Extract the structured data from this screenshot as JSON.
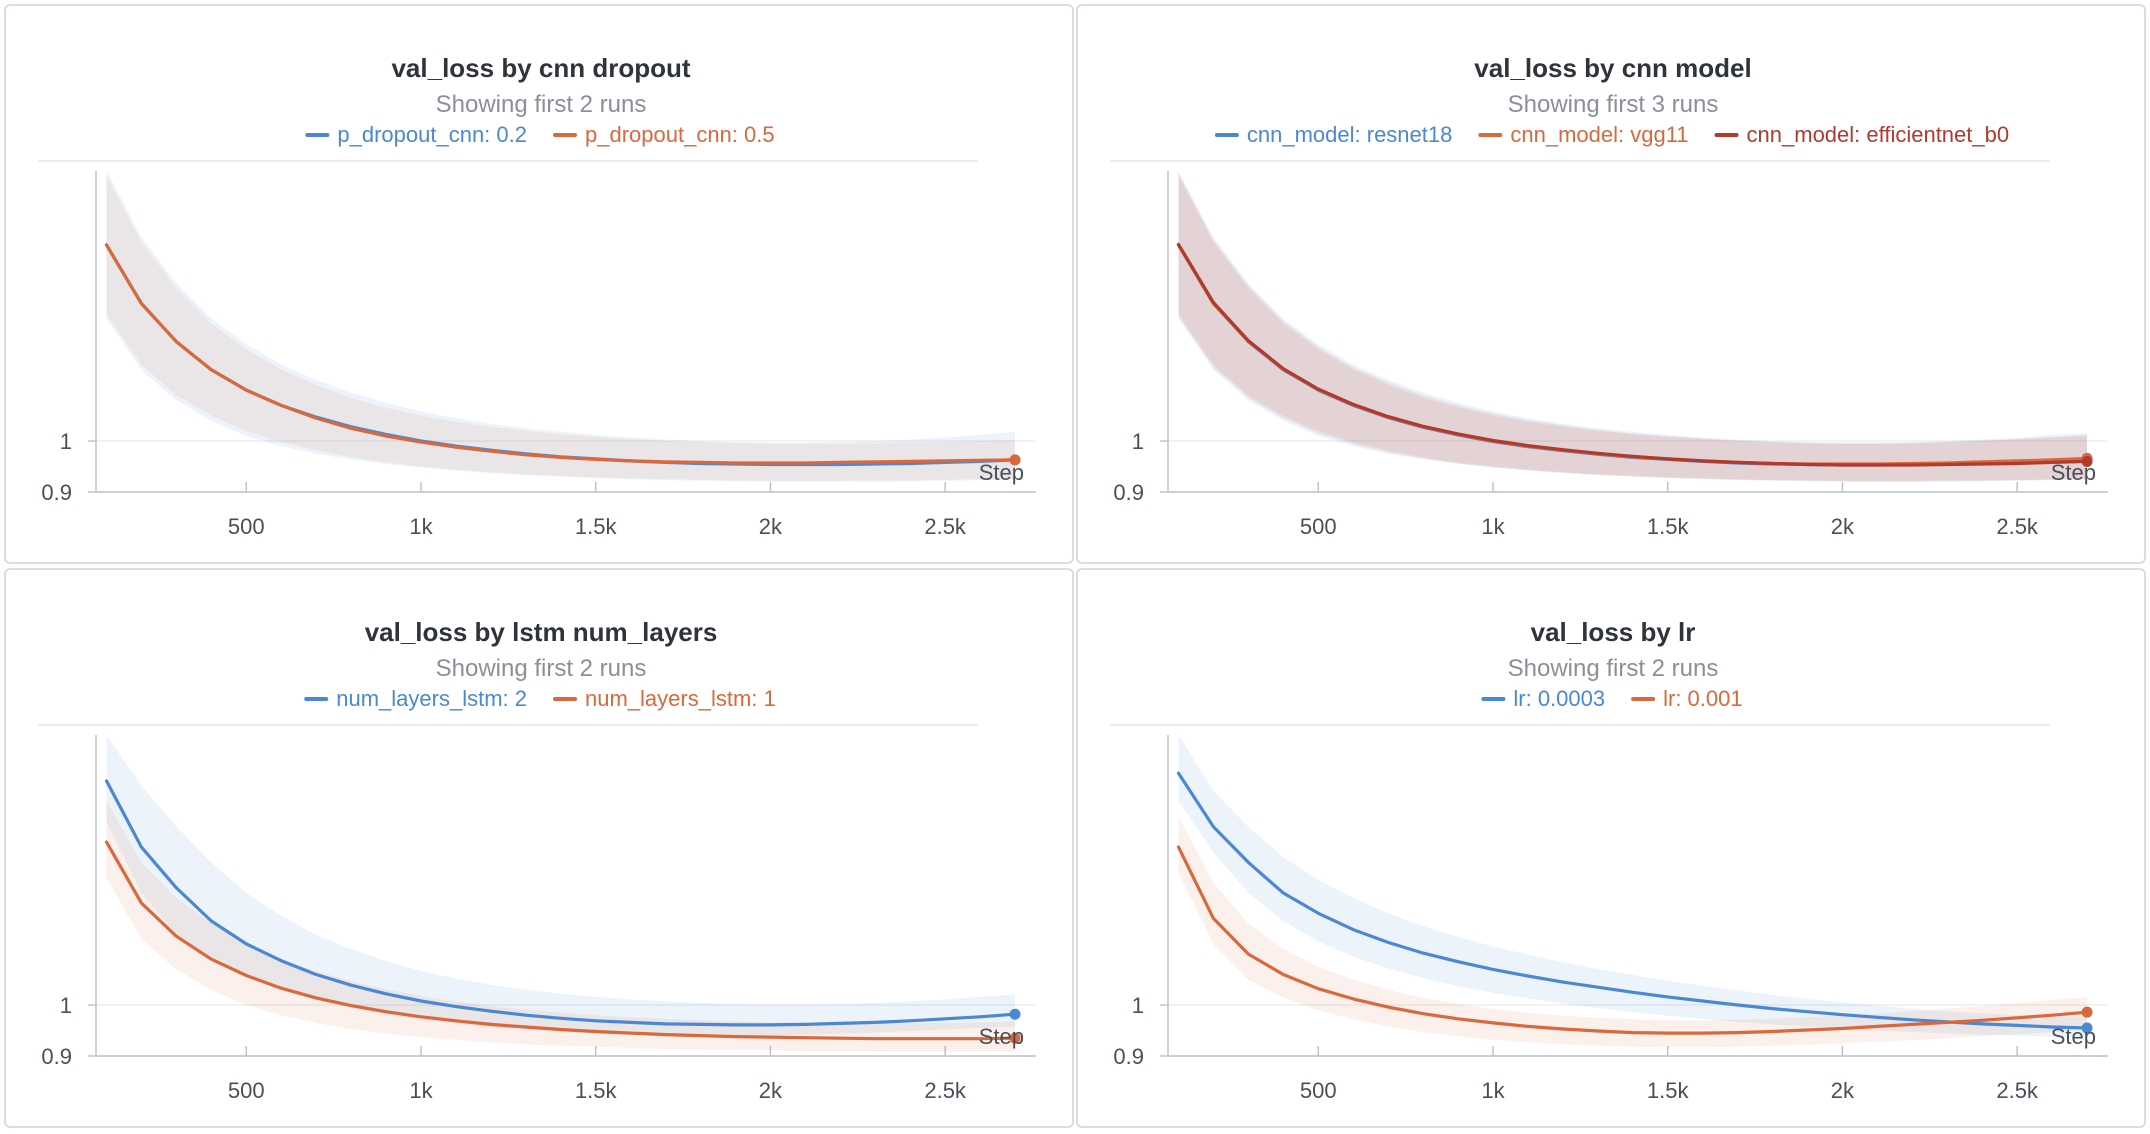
{
  "colors": {
    "blue": "#4a88d4",
    "orange": "#d9683a",
    "darkred": "#b03a2e"
  },
  "chart_data": [
    {
      "type": "line",
      "title": "val_loss by cnn dropout",
      "subtitle": "Showing first 2 runs",
      "xlabel": "Step",
      "x_ticks": [
        500,
        1000,
        1500,
        2000,
        2500
      ],
      "x_tick_labels": [
        "500",
        "1k",
        "1.5k",
        "2k",
        "2.5k"
      ],
      "y_ticks": [
        0.9,
        1
      ],
      "y_tick_labels": [
        "0.9",
        "1"
      ],
      "xlim": [
        70,
        2760
      ],
      "ylim": [
        0.9,
        1.53
      ],
      "x": [
        100,
        200,
        300,
        400,
        500,
        600,
        700,
        800,
        900,
        1000,
        1100,
        1200,
        1300,
        1400,
        1500,
        1600,
        1700,
        1800,
        1900,
        2000,
        2100,
        2200,
        2300,
        2400,
        2500,
        2600,
        2700
      ],
      "series": [
        {
          "name": "p_dropout_cnn: 0.2",
          "color_key": "blue",
          "values": [
            1.385,
            1.27,
            1.195,
            1.14,
            1.1,
            1.07,
            1.047,
            1.028,
            1.013,
            1.0,
            0.99,
            0.982,
            0.975,
            0.969,
            0.965,
            0.961,
            0.958,
            0.956,
            0.955,
            0.954,
            0.954,
            0.954,
            0.955,
            0.956,
            0.958,
            0.96,
            0.963
          ],
          "band_upper": [
            1.53,
            1.4,
            1.31,
            1.24,
            1.19,
            1.15,
            1.12,
            1.095,
            1.075,
            1.058,
            1.045,
            1.034,
            1.025,
            1.018,
            1.012,
            1.007,
            1.003,
            1.0,
            0.998,
            0.997,
            0.997,
            0.998,
            1.0,
            1.003,
            1.007,
            1.012,
            1.018
          ],
          "band_lower": [
            1.24,
            1.14,
            1.08,
            1.04,
            1.01,
            0.99,
            0.975,
            0.964,
            0.955,
            0.948,
            0.942,
            0.937,
            0.933,
            0.93,
            0.927,
            0.925,
            0.923,
            0.922,
            0.921,
            0.92,
            0.92,
            0.92,
            0.92,
            0.921,
            0.922,
            0.923,
            0.925
          ]
        },
        {
          "name": "p_dropout_cnn: 0.5",
          "color_key": "orange",
          "values": [
            1.385,
            1.27,
            1.195,
            1.14,
            1.1,
            1.07,
            1.045,
            1.025,
            1.01,
            0.998,
            0.988,
            0.98,
            0.973,
            0.968,
            0.964,
            0.961,
            0.959,
            0.958,
            0.957,
            0.957,
            0.957,
            0.958,
            0.959,
            0.96,
            0.961,
            0.962,
            0.963
          ],
          "band_upper": [
            1.52,
            1.39,
            1.3,
            1.23,
            1.18,
            1.14,
            1.11,
            1.085,
            1.065,
            1.05,
            1.038,
            1.028,
            1.02,
            1.013,
            1.008,
            1.004,
            1.0,
            0.998,
            0.996,
            0.995,
            0.995,
            0.995,
            0.996,
            0.997,
            0.998,
            1.0,
            1.002
          ],
          "band_lower": [
            1.25,
            1.15,
            1.09,
            1.05,
            1.02,
            0.998,
            0.982,
            0.968,
            0.958,
            0.95,
            0.944,
            0.939,
            0.935,
            0.932,
            0.929,
            0.927,
            0.925,
            0.924,
            0.923,
            0.922,
            0.922,
            0.922,
            0.923,
            0.923,
            0.924,
            0.925,
            0.926
          ]
        }
      ]
    },
    {
      "type": "line",
      "title": "val_loss by cnn model",
      "subtitle": "Showing first 3 runs",
      "xlabel": "Step",
      "x_ticks": [
        500,
        1000,
        1500,
        2000,
        2500
      ],
      "x_tick_labels": [
        "500",
        "1k",
        "1.5k",
        "2k",
        "2.5k"
      ],
      "y_ticks": [
        0.9,
        1
      ],
      "y_tick_labels": [
        "0.9",
        "1"
      ],
      "xlim": [
        70,
        2760
      ],
      "ylim": [
        0.9,
        1.53
      ],
      "x": [
        100,
        200,
        300,
        400,
        500,
        600,
        700,
        800,
        900,
        1000,
        1100,
        1200,
        1300,
        1400,
        1500,
        1600,
        1700,
        1800,
        1900,
        2000,
        2100,
        2200,
        2300,
        2400,
        2500,
        2600,
        2700
      ],
      "series": [
        {
          "name": "cnn_model: resnet18",
          "color_key": "blue",
          "values": [
            1.385,
            1.27,
            1.195,
            1.14,
            1.1,
            1.07,
            1.046,
            1.027,
            1.012,
            0.999,
            0.989,
            0.981,
            0.974,
            0.968,
            0.964,
            0.96,
            0.957,
            0.955,
            0.954,
            0.953,
            0.953,
            0.954,
            0.955,
            0.956,
            0.958,
            0.96,
            0.962
          ],
          "band_upper": [
            1.53,
            1.4,
            1.31,
            1.24,
            1.19,
            1.15,
            1.12,
            1.095,
            1.075,
            1.058,
            1.045,
            1.034,
            1.025,
            1.018,
            1.012,
            1.007,
            1.003,
            1.0,
            0.998,
            0.997,
            0.997,
            0.998,
            1.0,
            1.003,
            1.007,
            1.012,
            1.016
          ],
          "band_lower": [
            1.24,
            1.14,
            1.08,
            1.04,
            1.01,
            0.99,
            0.975,
            0.964,
            0.955,
            0.948,
            0.942,
            0.937,
            0.933,
            0.93,
            0.927,
            0.925,
            0.923,
            0.922,
            0.921,
            0.92,
            0.92,
            0.92,
            0.92,
            0.921,
            0.922,
            0.923,
            0.925
          ]
        },
        {
          "name": "cnn_model: vgg11",
          "color_key": "orange",
          "values": [
            1.385,
            1.27,
            1.196,
            1.141,
            1.101,
            1.071,
            1.047,
            1.028,
            1.013,
            1.0,
            0.99,
            0.982,
            0.975,
            0.969,
            0.965,
            0.961,
            0.958,
            0.956,
            0.955,
            0.955,
            0.955,
            0.956,
            0.957,
            0.959,
            0.961,
            0.963,
            0.966
          ],
          "band_upper": [
            1.52,
            1.39,
            1.3,
            1.23,
            1.18,
            1.14,
            1.11,
            1.085,
            1.065,
            1.05,
            1.038,
            1.028,
            1.02,
            1.013,
            1.008,
            1.004,
            1.0,
            0.998,
            0.996,
            0.995,
            0.995,
            0.996,
            0.998,
            1.0,
            1.003,
            1.007,
            1.01
          ],
          "band_lower": [
            1.25,
            1.15,
            1.09,
            1.05,
            1.02,
            0.998,
            0.982,
            0.968,
            0.958,
            0.95,
            0.944,
            0.939,
            0.935,
            0.932,
            0.929,
            0.927,
            0.925,
            0.924,
            0.923,
            0.922,
            0.922,
            0.922,
            0.923,
            0.923,
            0.924,
            0.925,
            0.926
          ]
        },
        {
          "name": "cnn_model: efficientnet_b0",
          "color_key": "darkred",
          "values": [
            1.386,
            1.272,
            1.197,
            1.142,
            1.102,
            1.072,
            1.048,
            1.029,
            1.014,
            1.001,
            0.991,
            0.983,
            0.976,
            0.97,
            0.965,
            0.961,
            0.958,
            0.956,
            0.954,
            0.953,
            0.953,
            0.953,
            0.954,
            0.955,
            0.956,
            0.958,
            0.96
          ],
          "band_upper": [
            1.525,
            1.395,
            1.305,
            1.235,
            1.185,
            1.145,
            1.115,
            1.09,
            1.07,
            1.054,
            1.041,
            1.031,
            1.022,
            1.015,
            1.01,
            1.005,
            1.001,
            0.998,
            0.996,
            0.995,
            0.995,
            0.996,
            0.998,
            1.001,
            1.004,
            1.008,
            1.012
          ],
          "band_lower": [
            1.245,
            1.145,
            1.085,
            1.045,
            1.015,
            0.994,
            0.978,
            0.966,
            0.956,
            0.949,
            0.943,
            0.938,
            0.934,
            0.931,
            0.928,
            0.926,
            0.924,
            0.923,
            0.922,
            0.921,
            0.921,
            0.921,
            0.921,
            0.922,
            0.923,
            0.924,
            0.925
          ]
        }
      ]
    },
    {
      "type": "line",
      "title": "val_loss by lstm num_layers",
      "subtitle": "Showing first 2 runs",
      "xlabel": "Step",
      "x_ticks": [
        500,
        1000,
        1500,
        2000,
        2500
      ],
      "x_tick_labels": [
        "500",
        "1k",
        "1.5k",
        "2k",
        "2.5k"
      ],
      "y_ticks": [
        0.9,
        1
      ],
      "y_tick_labels": [
        "0.9",
        "1"
      ],
      "xlim": [
        70,
        2760
      ],
      "ylim": [
        0.9,
        1.53
      ],
      "x": [
        100,
        200,
        300,
        400,
        500,
        600,
        700,
        800,
        900,
        1000,
        1100,
        1200,
        1300,
        1400,
        1500,
        1600,
        1700,
        1800,
        1900,
        2000,
        2100,
        2200,
        2300,
        2400,
        2500,
        2600,
        2700
      ],
      "series": [
        {
          "name": "num_layers_lstm: 2",
          "color_key": "blue",
          "values": [
            1.44,
            1.31,
            1.23,
            1.165,
            1.12,
            1.087,
            1.06,
            1.039,
            1.022,
            1.008,
            0.997,
            0.988,
            0.98,
            0.974,
            0.969,
            0.966,
            0.963,
            0.962,
            0.961,
            0.961,
            0.962,
            0.964,
            0.966,
            0.969,
            0.973,
            0.977,
            0.982
          ],
          "band_upper": [
            1.53,
            1.43,
            1.35,
            1.28,
            1.22,
            1.175,
            1.138,
            1.11,
            1.086,
            1.067,
            1.052,
            1.04,
            1.03,
            1.022,
            1.016,
            1.011,
            1.007,
            1.004,
            1.002,
            1.001,
            1.001,
            1.002,
            1.004,
            1.007,
            1.011,
            1.016,
            1.021
          ],
          "band_lower": [
            1.36,
            1.22,
            1.14,
            1.09,
            1.055,
            1.03,
            1.01,
            0.994,
            0.981,
            0.971,
            0.963,
            0.956,
            0.951,
            0.947,
            0.944,
            0.942,
            0.941,
            0.94,
            0.94,
            0.941,
            0.942,
            0.944,
            0.946,
            0.949,
            0.952,
            0.955,
            0.958
          ]
        },
        {
          "name": "num_layers_lstm: 1",
          "color_key": "orange",
          "values": [
            1.32,
            1.2,
            1.135,
            1.09,
            1.058,
            1.033,
            1.014,
            0.999,
            0.987,
            0.977,
            0.969,
            0.962,
            0.957,
            0.952,
            0.948,
            0.945,
            0.942,
            0.94,
            0.938,
            0.937,
            0.936,
            0.935,
            0.934,
            0.934,
            0.934,
            0.934,
            0.935
          ],
          "band_upper": [
            1.4,
            1.28,
            1.21,
            1.16,
            1.12,
            1.09,
            1.066,
            1.047,
            1.031,
            1.018,
            1.007,
            0.998,
            0.991,
            0.985,
            0.98,
            0.976,
            0.973,
            0.97,
            0.968,
            0.966,
            0.965,
            0.964,
            0.964,
            0.964,
            0.965,
            0.966,
            0.968
          ],
          "band_lower": [
            1.25,
            1.13,
            1.07,
            1.03,
            1.0,
            0.98,
            0.965,
            0.953,
            0.944,
            0.937,
            0.932,
            0.927,
            0.923,
            0.92,
            0.918,
            0.916,
            0.914,
            0.913,
            0.912,
            0.911,
            0.91,
            0.909,
            0.909,
            0.908,
            0.908,
            0.908,
            0.908
          ]
        }
      ]
    },
    {
      "type": "line",
      "title": "val_loss by lr",
      "subtitle": "Showing first 2 runs",
      "xlabel": "Step",
      "x_ticks": [
        500,
        1000,
        1500,
        2000,
        2500
      ],
      "x_tick_labels": [
        "500",
        "1k",
        "1.5k",
        "2k",
        "2.5k"
      ],
      "y_ticks": [
        0.9,
        1
      ],
      "y_tick_labels": [
        "0.9",
        "1"
      ],
      "xlim": [
        70,
        2760
      ],
      "ylim": [
        0.9,
        1.53
      ],
      "x": [
        100,
        200,
        300,
        400,
        500,
        600,
        700,
        800,
        900,
        1000,
        1100,
        1200,
        1300,
        1400,
        1500,
        1600,
        1700,
        1800,
        1900,
        2000,
        2100,
        2200,
        2300,
        2400,
        2500,
        2600,
        2700
      ],
      "series": [
        {
          "name": "lr: 0.0003",
          "color_key": "blue",
          "values": [
            1.455,
            1.35,
            1.28,
            1.22,
            1.18,
            1.148,
            1.123,
            1.102,
            1.085,
            1.07,
            1.057,
            1.045,
            1.035,
            1.025,
            1.016,
            1.008,
            1.0,
            0.993,
            0.987,
            0.981,
            0.976,
            0.971,
            0.967,
            0.963,
            0.96,
            0.957,
            0.955
          ],
          "band_upper": [
            1.53,
            1.42,
            1.35,
            1.29,
            1.245,
            1.21,
            1.18,
            1.155,
            1.134,
            1.115,
            1.099,
            1.084,
            1.071,
            1.059,
            1.048,
            1.038,
            1.029,
            1.02,
            1.012,
            1.005,
            0.999,
            0.993,
            0.988,
            0.984,
            0.98,
            0.977,
            0.975
          ],
          "band_lower": [
            1.4,
            1.3,
            1.22,
            1.165,
            1.125,
            1.095,
            1.072,
            1.053,
            1.037,
            1.024,
            1.013,
            1.003,
            0.994,
            0.986,
            0.979,
            0.973,
            0.967,
            0.962,
            0.958,
            0.954,
            0.95,
            0.947,
            0.944,
            0.942,
            0.94,
            0.938,
            0.937
          ]
        },
        {
          "name": "lr: 0.001",
          "color_key": "orange",
          "values": [
            1.31,
            1.17,
            1.1,
            1.06,
            1.032,
            1.012,
            0.996,
            0.983,
            0.973,
            0.965,
            0.958,
            0.953,
            0.949,
            0.946,
            0.945,
            0.945,
            0.946,
            0.948,
            0.951,
            0.954,
            0.958,
            0.962,
            0.966,
            0.97,
            0.975,
            0.98,
            0.986
          ],
          "band_upper": [
            1.37,
            1.24,
            1.16,
            1.11,
            1.075,
            1.05,
            1.03,
            1.014,
            1.002,
            0.992,
            0.985,
            0.979,
            0.975,
            0.972,
            0.97,
            0.97,
            0.971,
            0.973,
            0.976,
            0.979,
            0.983,
            0.988,
            0.993,
            0.998,
            1.004,
            1.01,
            1.016
          ],
          "band_lower": [
            1.26,
            1.12,
            1.05,
            1.015,
            0.99,
            0.972,
            0.958,
            0.947,
            0.939,
            0.932,
            0.927,
            0.923,
            0.92,
            0.918,
            0.917,
            0.917,
            0.918,
            0.92,
            0.922,
            0.925,
            0.928,
            0.931,
            0.935,
            0.939,
            0.943,
            0.947,
            0.951
          ]
        }
      ]
    }
  ]
}
